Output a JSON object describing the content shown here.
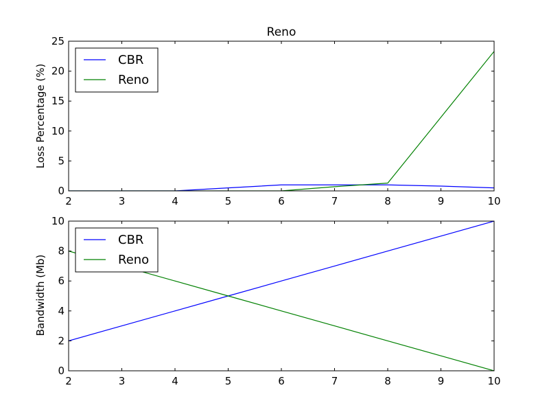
{
  "chart_data": [
    {
      "type": "line",
      "title": "Reno",
      "xlabel": "",
      "ylabel": "Loss Percentage (%)",
      "xlim": [
        2,
        10
      ],
      "ylim": [
        0,
        25
      ],
      "xticks": [
        2,
        3,
        4,
        5,
        6,
        7,
        8,
        9,
        10
      ],
      "yticks": [
        0,
        5,
        10,
        15,
        20,
        25
      ],
      "legend": "upper-left",
      "series": [
        {
          "name": "CBR",
          "color": "#0000ff",
          "x": [
            2,
            3,
            4,
            5,
            6,
            7,
            8,
            9,
            10
          ],
          "y": [
            0,
            0,
            0,
            0.5,
            1.0,
            1.0,
            1.0,
            0.8,
            0.5
          ]
        },
        {
          "name": "Reno",
          "color": "#008000",
          "x": [
            2,
            3,
            4,
            5,
            6,
            7,
            8,
            9,
            10
          ],
          "y": [
            0,
            0,
            0,
            0,
            0,
            0.7,
            1.3,
            12.3,
            23.3
          ]
        }
      ]
    },
    {
      "type": "line",
      "title": "",
      "xlabel": "",
      "ylabel": "Bandwidth (Mb)",
      "xlim": [
        2,
        10
      ],
      "ylim": [
        0,
        10
      ],
      "xticks": [
        2,
        3,
        4,
        5,
        6,
        7,
        8,
        9,
        10
      ],
      "yticks": [
        0,
        2,
        4,
        6,
        8,
        10
      ],
      "legend": "upper-left",
      "series": [
        {
          "name": "CBR",
          "color": "#0000ff",
          "x": [
            2,
            3,
            4,
            5,
            6,
            7,
            8,
            9,
            10
          ],
          "y": [
            2,
            3,
            4,
            5,
            6,
            7,
            8,
            9,
            10
          ]
        },
        {
          "name": "Reno",
          "color": "#008000",
          "x": [
            2,
            3,
            4,
            5,
            6,
            7,
            8,
            9,
            10
          ],
          "y": [
            8,
            7,
            6,
            5,
            4,
            3,
            2,
            1,
            0
          ]
        }
      ]
    }
  ]
}
